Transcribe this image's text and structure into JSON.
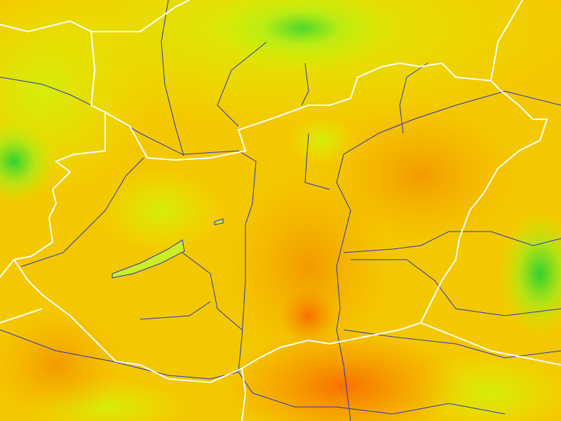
{
  "map": {
    "type": "heatmap-overlay",
    "colors": {
      "base": "#f5cc00",
      "cool_green": "#2fd42a",
      "yellow_green": "#c8ec10",
      "yellow": "#f3e800",
      "orange": "#f2a000",
      "hot_orange": "#f77a00",
      "border": "#ffffff",
      "river": "#2233cc",
      "lake": "#ccee22"
    }
  }
}
